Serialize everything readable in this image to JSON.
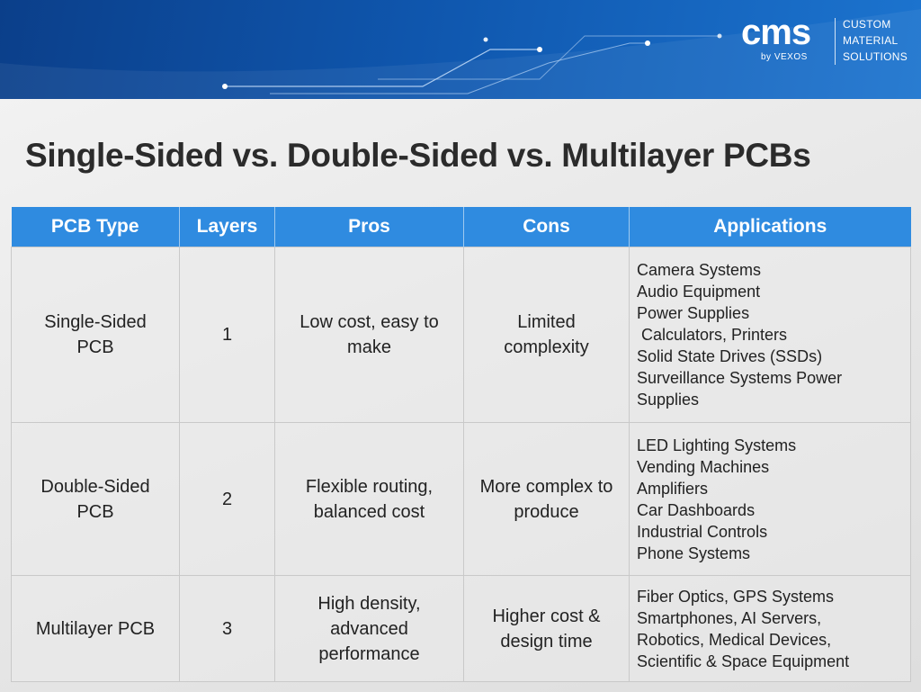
{
  "logo": {
    "brand": "cms",
    "byline": "by VEXOS",
    "tagline": [
      "CUSTOM",
      "MATERIAL",
      "SOLUTIONS"
    ]
  },
  "title": "Single-Sided vs. Double-Sided vs. Multilayer PCBs",
  "table": {
    "headers": [
      "PCB Type",
      "Layers",
      "Pros",
      "Cons",
      "Applications"
    ],
    "rows": [
      {
        "type": "Single-Sided PCB",
        "layers": "1",
        "pros": "Low cost, easy to make",
        "cons": "Limited complexity",
        "applications": [
          "Camera Systems",
          "Audio Equipment",
          "Power Supplies",
          " Calculators, Printers",
          "Solid State Drives (SSDs)",
          "Surveillance Systems Power",
          "Supplies"
        ]
      },
      {
        "type": "Double-Sided PCB",
        "layers": "2",
        "pros": "Flexible routing, balanced cost",
        "cons": "More complex to produce",
        "applications": [
          "LED Lighting Systems",
          "Vending Machines",
          "Amplifiers",
          "Car Dashboards",
          "Industrial Controls",
          "Phone Systems"
        ]
      },
      {
        "type": "Multilayer PCB",
        "layers": "3",
        "pros": "High density, advanced performance",
        "cons": "Higher cost & design time",
        "applications": [
          "Fiber Optics, GPS Systems",
          "Smartphones, AI Servers,",
          "Robotics, Medical Devices,",
          "Scientific & Space Equipment"
        ]
      }
    ]
  }
}
